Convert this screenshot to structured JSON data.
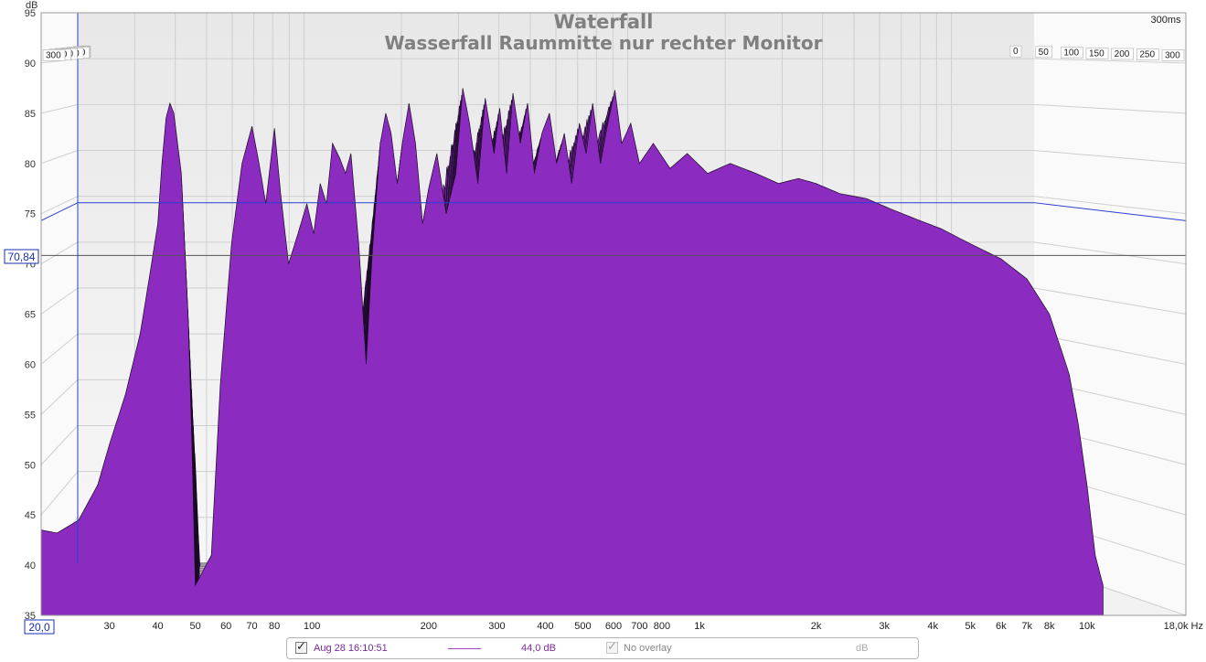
{
  "chart_data": {
    "type": "area",
    "title": "Waterfall",
    "subtitle": "Wasserfall Raummitte nur rechter Monitor",
    "y_axis": {
      "unit": "dB",
      "range": [
        35,
        95
      ],
      "ticks": [
        "95",
        "90",
        "85",
        "80",
        "75",
        "70",
        "65",
        "60",
        "55",
        "50",
        "45",
        "40",
        "35"
      ]
    },
    "x_axis": {
      "scale": "log",
      "unit": "Hz",
      "range": [
        20,
        18000
      ],
      "ticks": [
        {
          "label": "30",
          "value": 30
        },
        {
          "label": "40",
          "value": 40
        },
        {
          "label": "50",
          "value": 50
        },
        {
          "label": "60",
          "value": 60
        },
        {
          "label": "70",
          "value": 70
        },
        {
          "label": "80",
          "value": 80
        },
        {
          "label": "100",
          "value": 100
        },
        {
          "label": "200",
          "value": 200
        },
        {
          "label": "300",
          "value": 300
        },
        {
          "label": "400",
          "value": 400
        },
        {
          "label": "500",
          "value": 500
        },
        {
          "label": "600",
          "value": 600
        },
        {
          "label": "700",
          "value": 700
        },
        {
          "label": "800",
          "value": 800
        },
        {
          "label": "1k",
          "value": 1000
        },
        {
          "label": "2k",
          "value": 2000
        },
        {
          "label": "3k",
          "value": 3000
        },
        {
          "label": "4k",
          "value": 4000
        },
        {
          "label": "5k",
          "value": 5000
        },
        {
          "label": "6k",
          "value": 6000
        },
        {
          "label": "7k",
          "value": 7000
        },
        {
          "label": "8k",
          "value": 8000
        },
        {
          "label": "10k",
          "value": 10000
        }
      ],
      "end_label": "18,0k Hz",
      "start_label": "20,0"
    },
    "time_axis": {
      "unit": "ms",
      "range": [
        0,
        300
      ],
      "ticks": [
        "0",
        "50",
        "100",
        "150",
        "200",
        "250",
        "300"
      ],
      "max_label": "300ms"
    },
    "cursor": {
      "value_db": 70.84,
      "label": "70,84",
      "limit_db": 74.3
    },
    "front_slice": [
      [
        20,
        43.5
      ],
      [
        22,
        43.2
      ],
      [
        25,
        44.5
      ],
      [
        28,
        48
      ],
      [
        30,
        52
      ],
      [
        33,
        57
      ],
      [
        36,
        63
      ],
      [
        38,
        68.5
      ],
      [
        40,
        74
      ],
      [
        41,
        80
      ],
      [
        42,
        84.5
      ],
      [
        43,
        86
      ],
      [
        44,
        85
      ],
      [
        46,
        79
      ],
      [
        48,
        64
      ],
      [
        49,
        52
      ],
      [
        50,
        38
      ],
      [
        55,
        41
      ],
      [
        58,
        58
      ],
      [
        62,
        72
      ],
      [
        66,
        80
      ],
      [
        70,
        83.7
      ],
      [
        73,
        80
      ],
      [
        76,
        76
      ],
      [
        80,
        83.5
      ],
      [
        83,
        77
      ],
      [
        87,
        70
      ],
      [
        92,
        73
      ],
      [
        97,
        76
      ],
      [
        101,
        73
      ],
      [
        105,
        78
      ],
      [
        109,
        76
      ],
      [
        113,
        82
      ],
      [
        118,
        80.5
      ],
      [
        122,
        79
      ],
      [
        126,
        81
      ],
      [
        132,
        72
      ],
      [
        138,
        60
      ],
      [
        143,
        71
      ],
      [
        150,
        82
      ],
      [
        155,
        85
      ],
      [
        160,
        83
      ],
      [
        166,
        78
      ],
      [
        171,
        82
      ],
      [
        178,
        86
      ],
      [
        185,
        82
      ],
      [
        193,
        74
      ],
      [
        200,
        77.5
      ],
      [
        210,
        81
      ],
      [
        222,
        75
      ],
      [
        235,
        79
      ],
      [
        245,
        87.5
      ],
      [
        255,
        84
      ],
      [
        268,
        78
      ],
      [
        280,
        86.5
      ],
      [
        295,
        81
      ],
      [
        305,
        85.5
      ],
      [
        318,
        79
      ],
      [
        330,
        87
      ],
      [
        345,
        82
      ],
      [
        360,
        86
      ],
      [
        375,
        79
      ],
      [
        392,
        83
      ],
      [
        410,
        85
      ],
      [
        428,
        80
      ],
      [
        448,
        83
      ],
      [
        468,
        78
      ],
      [
        490,
        84
      ],
      [
        510,
        81
      ],
      [
        530,
        86
      ],
      [
        555,
        80
      ],
      [
        580,
        84
      ],
      [
        605,
        87.3
      ],
      [
        630,
        82
      ],
      [
        665,
        84
      ],
      [
        700,
        80
      ],
      [
        760,
        82
      ],
      [
        840,
        79.5
      ],
      [
        930,
        81
      ],
      [
        1050,
        79
      ],
      [
        1200,
        80
      ],
      [
        1400,
        79
      ],
      [
        1600,
        78
      ],
      [
        1800,
        78.5
      ],
      [
        2000,
        78
      ],
      [
        2300,
        77
      ],
      [
        2700,
        76.5
      ],
      [
        3100,
        75.5
      ],
      [
        3600,
        74.5
      ],
      [
        4200,
        73.5
      ],
      [
        5000,
        72
      ],
      [
        6000,
        70.5
      ],
      [
        7000,
        68.5
      ],
      [
        8000,
        65
      ],
      [
        9000,
        59
      ],
      [
        9500,
        54
      ],
      [
        10000,
        48
      ],
      [
        10500,
        41
      ],
      [
        11000,
        38
      ]
    ],
    "slice_count": 30,
    "color": "#8b2bbf",
    "grid": true,
    "legend": {
      "position": "bottom",
      "entries": [
        {
          "checked": true,
          "name": "Aug 28 16:10:51",
          "value": "44,0 dB",
          "color": "#7a2aa0"
        },
        {
          "checked": true,
          "name": "No overlay",
          "value": "dB",
          "disabled": true
        }
      ]
    }
  }
}
